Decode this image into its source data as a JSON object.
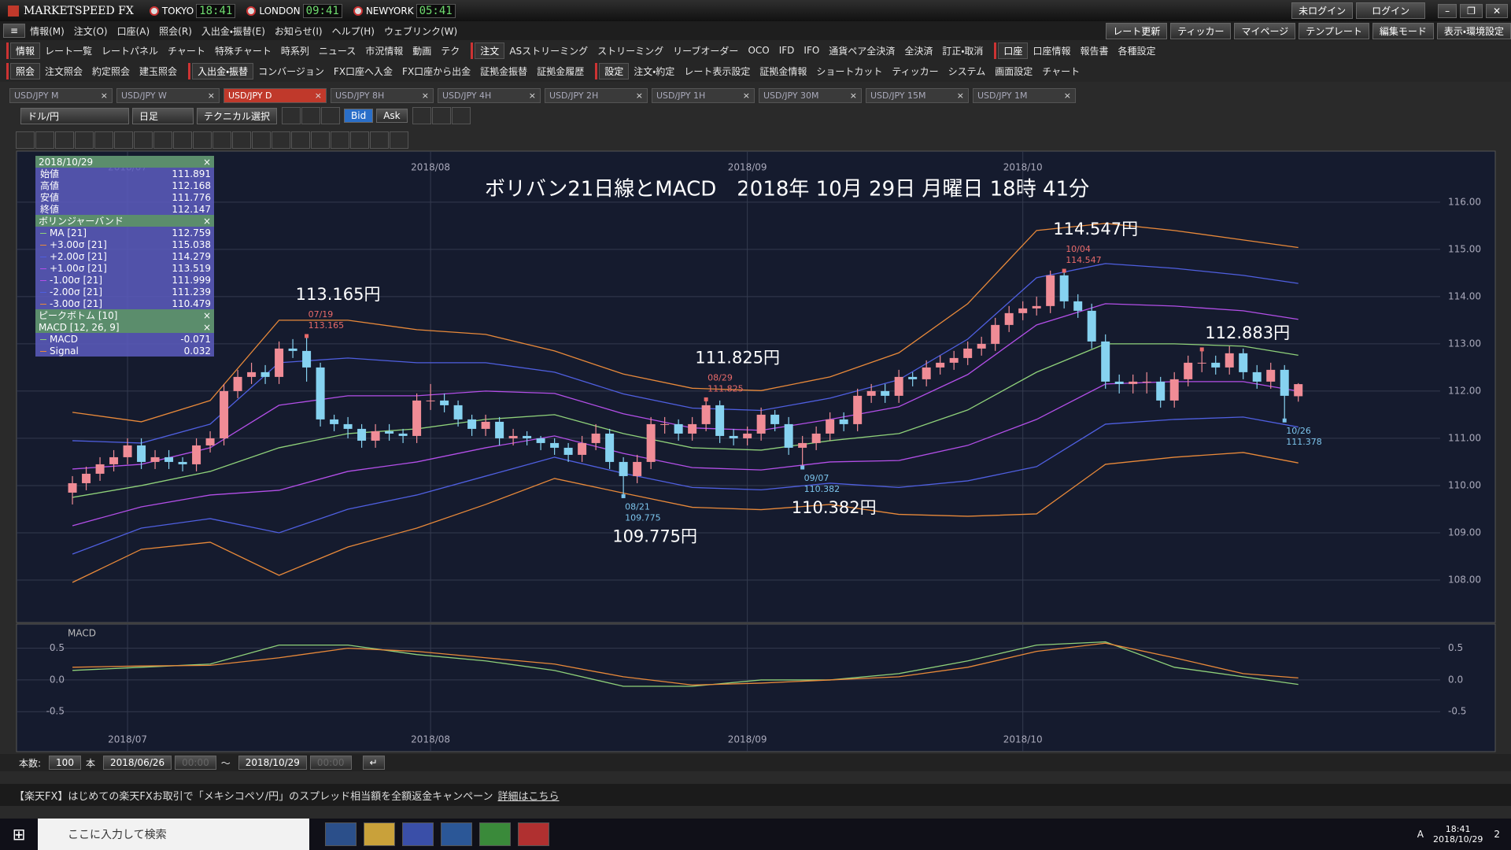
{
  "app": {
    "title": "MARKETSPEED FX",
    "clocks": [
      {
        "city": "TOKYO",
        "time": "18:41"
      },
      {
        "city": "LONDON",
        "time": "09:41"
      },
      {
        "city": "NEWYORK",
        "time": "05:41"
      }
    ],
    "login_status": "未ログイン",
    "login": "ログイン"
  },
  "menu": [
    "情報(M)",
    "注文(O)",
    "口座(A)",
    "照会(R)",
    "入出金・振替(E)",
    "お知らせ(I)",
    "ヘルプ(H)",
    "ウェブリンク(W)"
  ],
  "menu_right": [
    "レート更新",
    "ティッカー",
    "マイページ",
    "テンプレート",
    "編集モード",
    "表示・環境設定"
  ],
  "toolbar1": [
    [
      "情報",
      "レート一覧",
      "レートパネル",
      "チャート",
      "特殊チャート",
      "時系列",
      "ニュース",
      "市況情報",
      "動画",
      "テク"
    ],
    [
      "注文",
      "ASストリーミング",
      "ストリーミング",
      "リーブオーダー",
      "OCO",
      "IFD",
      "IFO",
      "通貨ペア全決済",
      "全決済",
      "訂正・取消"
    ],
    [
      "口座",
      "口座情報",
      "報告書",
      "各種設定"
    ]
  ],
  "toolbar2": [
    [
      "照会",
      "注文照会",
      "約定照会",
      "建玉照会"
    ],
    [
      "入出金・振替",
      "コンバージョン",
      "FX口座へ入金",
      "FX口座から出金",
      "証拠金振替",
      "証拠金履歴"
    ],
    [
      "設定",
      "注文・約定",
      "レート表示設定",
      "証拠金情報",
      "ショートカット",
      "ティッカー",
      "システム",
      "画面設定",
      "チャート"
    ]
  ],
  "tabs": [
    "USD/JPY M",
    "USD/JPY W",
    "USD/JPY D",
    "USD/JPY 8H",
    "USD/JPY 4H",
    "USD/JPY 2H",
    "USD/JPY 1H",
    "USD/JPY 30M",
    "USD/JPY 15M",
    "USD/JPY 1M"
  ],
  "active_tab": 2,
  "chart_toolbar": {
    "pair": "ドル/円",
    "period": "日足",
    "tech": "テクニカル選択",
    "bid": "Bid",
    "ask": "Ask"
  },
  "chart_data": [
    {
      "type": "candlestick",
      "title": "ボリバン21日線とMACD　2018年 10月 29日 月曜日 18時 41分",
      "up_color": "#f08c96",
      "down_color": "#86d2f0",
      "xlim": [
        -4.06,
        103.3
      ],
      "xticks": [
        {
          "value": 4,
          "label": "2018/07"
        },
        {
          "value": 26,
          "label": "2018/08"
        },
        {
          "value": 49,
          "label": "2018/09"
        },
        {
          "value": 69,
          "label": "2018/10"
        }
      ],
      "ylim": [
        107.1,
        117.08
      ],
      "yticks": [
        {
          "value": 108,
          "label": "108.00"
        },
        {
          "value": 109,
          "label": "109.00"
        },
        {
          "value": 110,
          "label": "110.00"
        },
        {
          "value": 111,
          "label": "111.00"
        },
        {
          "value": 112,
          "label": "112.00"
        },
        {
          "value": 113,
          "label": "113.00"
        },
        {
          "value": 114,
          "label": "114.00"
        },
        {
          "value": 115,
          "label": "115.00"
        },
        {
          "value": 116,
          "label": "116.00"
        }
      ],
      "grid": true,
      "info_date": "2018/10/29",
      "ohlc_names": [
        "始値",
        "高値",
        "安値",
        "終値"
      ],
      "candles": [
        [
          109.85,
          110.2,
          109.6,
          110.05
        ],
        [
          110.05,
          110.4,
          109.9,
          110.25
        ],
        [
          110.25,
          110.6,
          110.1,
          110.45
        ],
        [
          110.45,
          110.75,
          110.3,
          110.6
        ],
        [
          110.6,
          111.0,
          110.45,
          110.85
        ],
        [
          110.85,
          111.0,
          110.35,
          110.5
        ],
        [
          110.5,
          110.75,
          110.35,
          110.6
        ],
        [
          110.6,
          110.75,
          110.35,
          110.5
        ],
        [
          110.5,
          110.6,
          110.3,
          110.45
        ],
        [
          110.45,
          111.0,
          110.3,
          110.85
        ],
        [
          110.85,
          111.15,
          110.7,
          111.0
        ],
        [
          111.0,
          112.15,
          110.85,
          112.0
        ],
        [
          112.0,
          112.45,
          111.85,
          112.3
        ],
        [
          112.3,
          112.6,
          112.15,
          112.4
        ],
        [
          112.4,
          112.55,
          112.15,
          112.3
        ],
        [
          112.3,
          113.05,
          112.15,
          112.9
        ],
        [
          112.9,
          113.1,
          112.7,
          112.85
        ],
        [
          112.85,
          113.165,
          112.2,
          112.5
        ],
        [
          112.5,
          112.6,
          111.25,
          111.4
        ],
        [
          111.4,
          111.5,
          111.15,
          111.3
        ],
        [
          111.3,
          111.45,
          111.0,
          111.2
        ],
        [
          111.2,
          111.3,
          110.8,
          110.95
        ],
        [
          110.95,
          111.3,
          110.8,
          111.15
        ],
        [
          111.15,
          111.3,
          110.95,
          111.1
        ],
        [
          111.1,
          111.2,
          110.9,
          111.05
        ],
        [
          111.05,
          111.95,
          110.9,
          111.8
        ],
        [
          111.8,
          112.15,
          111.6,
          111.8
        ],
        [
          111.8,
          111.95,
          111.55,
          111.7
        ],
        [
          111.7,
          111.8,
          111.25,
          111.4
        ],
        [
          111.4,
          111.5,
          111.05,
          111.2
        ],
        [
          111.2,
          111.5,
          111.05,
          111.35
        ],
        [
          111.35,
          111.45,
          110.85,
          111.0
        ],
        [
          111.0,
          111.2,
          110.85,
          111.05
        ],
        [
          111.05,
          111.15,
          110.85,
          111.0
        ],
        [
          111.0,
          111.05,
          110.75,
          110.9
        ],
        [
          110.9,
          111.0,
          110.65,
          110.8
        ],
        [
          110.8,
          110.9,
          110.5,
          110.65
        ],
        [
          110.65,
          111.05,
          110.5,
          110.9
        ],
        [
          110.9,
          111.3,
          110.75,
          111.1
        ],
        [
          111.1,
          111.2,
          110.35,
          110.5
        ],
        [
          110.5,
          110.6,
          109.775,
          110.2
        ],
        [
          110.2,
          110.65,
          110.05,
          110.5
        ],
        [
          110.5,
          111.45,
          110.35,
          111.3
        ],
        [
          111.3,
          111.45,
          111.1,
          111.3
        ],
        [
          111.3,
          111.4,
          110.95,
          111.1
        ],
        [
          111.1,
          111.45,
          110.95,
          111.3
        ],
        [
          111.3,
          111.825,
          111.15,
          111.7
        ],
        [
          111.7,
          111.8,
          110.9,
          111.05
        ],
        [
          111.05,
          111.2,
          110.85,
          111.0
        ],
        [
          111.0,
          111.25,
          110.85,
          111.1
        ],
        [
          111.1,
          111.65,
          110.95,
          111.5
        ],
        [
          111.5,
          111.6,
          111.15,
          111.3
        ],
        [
          111.3,
          111.45,
          110.65,
          110.8
        ],
        [
          110.8,
          111.05,
          110.382,
          110.9
        ],
        [
          110.9,
          111.25,
          110.75,
          111.1
        ],
        [
          111.1,
          111.55,
          110.95,
          111.4
        ],
        [
          111.4,
          111.55,
          111.15,
          111.3
        ],
        [
          111.3,
          112.05,
          111.15,
          111.9
        ],
        [
          111.9,
          112.15,
          111.75,
          112.0
        ],
        [
          112.0,
          112.15,
          111.75,
          111.9
        ],
        [
          111.9,
          112.45,
          111.75,
          112.3
        ],
        [
          112.3,
          112.4,
          112.1,
          112.25
        ],
        [
          112.25,
          112.65,
          112.1,
          112.5
        ],
        [
          112.5,
          112.75,
          112.35,
          112.6
        ],
        [
          112.6,
          112.85,
          112.45,
          112.7
        ],
        [
          112.7,
          113.05,
          112.55,
          112.9
        ],
        [
          112.9,
          113.15,
          112.75,
          113.0
        ],
        [
          113.0,
          113.55,
          112.85,
          113.4
        ],
        [
          113.4,
          113.8,
          113.25,
          113.65
        ],
        [
          113.65,
          113.9,
          113.5,
          113.75
        ],
        [
          113.75,
          114.0,
          113.6,
          113.8
        ],
        [
          113.8,
          114.55,
          113.65,
          114.45
        ],
        [
          114.45,
          114.547,
          113.75,
          113.9
        ],
        [
          113.9,
          114.05,
          113.55,
          113.7
        ],
        [
          113.7,
          113.85,
          112.9,
          113.05
        ],
        [
          113.05,
          113.2,
          112.05,
          112.2
        ],
        [
          112.2,
          112.35,
          111.95,
          112.15
        ],
        [
          112.15,
          112.35,
          111.95,
          112.2
        ],
        [
          112.2,
          112.4,
          111.95,
          112.2
        ],
        [
          112.2,
          112.3,
          111.65,
          111.8
        ],
        [
          111.8,
          112.4,
          111.65,
          112.25
        ],
        [
          112.25,
          112.75,
          112.1,
          112.6
        ],
        [
          112.6,
          112.883,
          112.4,
          112.6
        ],
        [
          112.6,
          112.75,
          112.35,
          112.5
        ],
        [
          112.5,
          112.95,
          112.35,
          112.8
        ],
        [
          112.8,
          112.9,
          112.25,
          112.4
        ],
        [
          112.4,
          112.55,
          112.05,
          112.2
        ],
        [
          112.2,
          112.6,
          112.05,
          112.45
        ],
        [
          112.45,
          112.55,
          111.378,
          111.9
        ],
        [
          111.891,
          112.168,
          111.776,
          112.147
        ]
      ],
      "bands": {
        "name": "ボリンジャーバンド",
        "x": [
          0,
          5,
          10,
          15,
          20,
          25,
          30,
          35,
          40,
          45,
          50,
          55,
          60,
          65,
          70,
          75,
          80,
          85,
          89
        ],
        "ma": [
          109.75,
          110.0,
          110.3,
          110.8,
          111.1,
          111.2,
          111.4,
          111.5,
          111.1,
          110.8,
          110.75,
          110.95,
          111.1,
          111.6,
          112.4,
          113.0,
          113.0,
          112.95,
          112.759
        ],
        "sigma": [
          0.6,
          0.45,
          0.5,
          0.9,
          0.8,
          0.7,
          0.6,
          0.45,
          0.42,
          0.42,
          0.42,
          0.45,
          0.57,
          0.75,
          1.0,
          0.85,
          0.8,
          0.75,
          0.76
        ],
        "lines": [
          {
            "name": "MA [21]",
            "k": 0,
            "color": "#8fd17a",
            "last": 112.759
          },
          {
            "name": "+3.00σ [21]",
            "k": 3,
            "color": "#e8893a",
            "last": 115.038
          },
          {
            "name": "+2.00σ [21]",
            "k": 2,
            "color": "#4f5fe0",
            "last": 114.279
          },
          {
            "name": "+1.00σ [21]",
            "k": 1,
            "color": "#b34fe8",
            "last": 113.519
          },
          {
            "name": "-1.00σ [21]",
            "k": -1,
            "color": "#b34fe8",
            "last": 111.999
          },
          {
            "name": "-2.00σ [21]",
            "k": -2,
            "color": "#4f5fe0",
            "last": 111.239
          },
          {
            "name": "-3.00σ [21]",
            "k": -3,
            "color": "#e8893a",
            "last": 110.479
          }
        ]
      },
      "peak_bottom": "ピークボトム [10]",
      "annotations": [
        {
          "x": 17,
          "kind": "high",
          "date": "07/19",
          "value": 113.165,
          "label": "113.165円"
        },
        {
          "x": 72,
          "kind": "high",
          "date": "10/04",
          "value": 114.547,
          "label": "114.547円"
        },
        {
          "x": 46,
          "kind": "high",
          "date": "08/29",
          "value": 111.825,
          "label": "111.825円"
        },
        {
          "x": 82,
          "kind": "high",
          "value": 112.883,
          "label": "112.883円"
        },
        {
          "x": 40,
          "kind": "low",
          "date": "08/21",
          "value": 109.775,
          "label": "109.775円"
        },
        {
          "x": 53,
          "kind": "low",
          "date": "09/07",
          "value": 110.382,
          "label": "110.382円"
        },
        {
          "x": 88,
          "kind": "low",
          "date": "10/26",
          "value": 111.378
        }
      ]
    },
    {
      "type": "line",
      "title": "MACD",
      "legend_title": "MACD [12, 26, 9]",
      "xlim": [
        -4.06,
        103.3
      ],
      "xticks": [
        {
          "value": 4,
          "label": "2018/07"
        },
        {
          "value": 26,
          "label": "2018/08"
        },
        {
          "value": 49,
          "label": "2018/09"
        },
        {
          "value": 69,
          "label": "2018/10"
        }
      ],
      "ylim": [
        -1.13,
        0.88
      ],
      "yticks": [
        0.5,
        {
          "value": 0,
          "label": "0.0"
        },
        -0.5
      ],
      "grid": true,
      "x": [
        0,
        5,
        10,
        15,
        20,
        25,
        30,
        35,
        40,
        45,
        50,
        55,
        60,
        65,
        70,
        75,
        80,
        85,
        89
      ],
      "series": [
        {
          "name": "MACD",
          "color": "#8fd17a",
          "values": [
            0.15,
            0.2,
            0.25,
            0.55,
            0.55,
            0.4,
            0.3,
            0.15,
            -0.1,
            -0.1,
            0.0,
            0.0,
            0.1,
            0.3,
            0.55,
            0.6,
            0.2,
            0.05,
            -0.071
          ]
        },
        {
          "name": "Signal",
          "color": "#e8893a",
          "values": [
            0.2,
            0.22,
            0.23,
            0.35,
            0.5,
            0.45,
            0.35,
            0.25,
            0.05,
            -0.08,
            -0.05,
            0.0,
            0.05,
            0.2,
            0.45,
            0.58,
            0.35,
            0.1,
            0.032
          ]
        }
      ]
    }
  ],
  "bottom": {
    "count_label": "本数:",
    "count": 100,
    "unit": "本",
    "from": "2018/06/26",
    "from_time": "00:00",
    "sep": "～",
    "to": "2018/10/29",
    "to_time": "00:00"
  },
  "ticker": {
    "text": "【楽天FX】はじめての楽天FXお取引で「メキシコペソ/円」のスプレッド相当額を全額返金キャンペーン",
    "link": "詳細はこちら"
  },
  "taskbar": {
    "search": "ここに入力して検索",
    "time": "18:41",
    "date": "2018/10/29",
    "ime": "A",
    "notifications": 2
  }
}
